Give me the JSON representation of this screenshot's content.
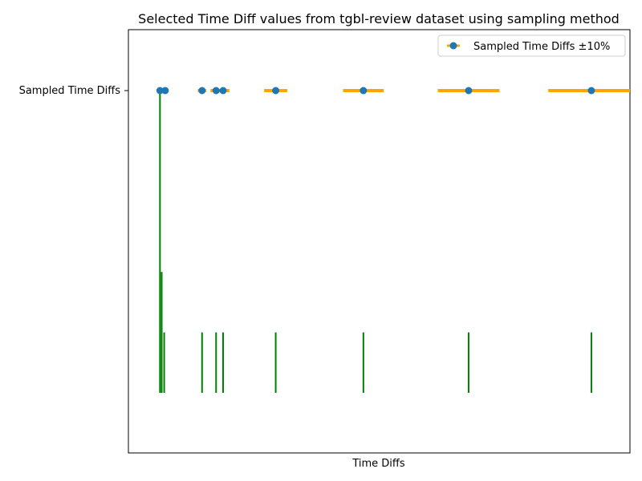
{
  "chart_data": {
    "type": "scatter",
    "title": "Selected Time Diff values from tgbl-review dataset using sampling method",
    "xlabel": "Time Diffs",
    "ylabel": "",
    "y_category": "Sampled Time Diffs",
    "legend": {
      "placement": "top-right",
      "label": "Sampled Time Diffs ±10%"
    },
    "colors": {
      "marker": "#1f77b4",
      "errorbar": "#ffa500",
      "histogram": "#008000"
    },
    "x_axis_ticks_visible": false,
    "grid": false,
    "points": [
      {
        "x": 0.0,
        "err": 0.0
      },
      {
        "x": 0.15,
        "err": 0.015
      },
      {
        "x": 1.2,
        "err": 0.12
      },
      {
        "x": 1.6,
        "err": 0.16
      },
      {
        "x": 1.8,
        "err": 0.18
      },
      {
        "x": 3.3,
        "err": 0.33
      },
      {
        "x": 5.8,
        "err": 0.58
      },
      {
        "x": 8.8,
        "err": 0.88
      },
      {
        "x": 12.3,
        "err": 1.23
      }
    ],
    "histogram_bars": [
      {
        "x": 0.0,
        "height": 1.0
      },
      {
        "x": 0.05,
        "height": 0.4
      },
      {
        "x": 0.12,
        "height": 0.2
      },
      {
        "x": 1.2,
        "height": 0.2
      },
      {
        "x": 1.6,
        "height": 0.2
      },
      {
        "x": 1.8,
        "height": 0.2
      },
      {
        "x": 3.3,
        "height": 0.2
      },
      {
        "x": 5.8,
        "height": 0.2
      },
      {
        "x": 8.8,
        "height": 0.2
      },
      {
        "x": 12.3,
        "height": 0.2
      }
    ],
    "xlim": [
      -0.9,
      13.4
    ]
  }
}
